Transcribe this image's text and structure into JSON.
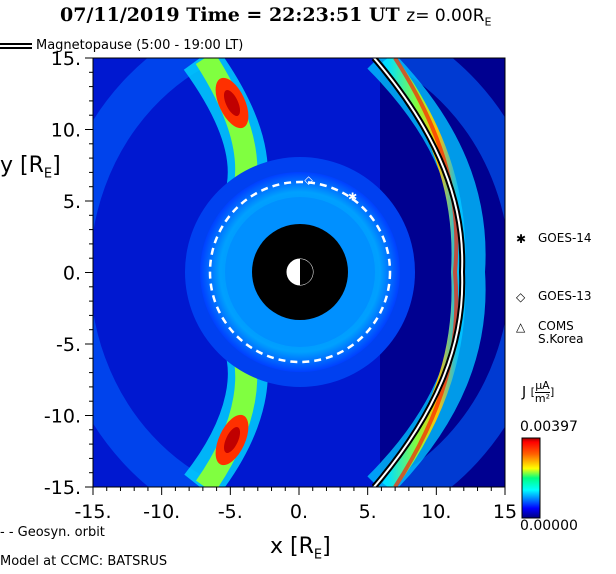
{
  "header": {
    "date": "07/11/2019",
    "time_label": "Time = 22:23:51 UT",
    "z_label": "z= 0.00R",
    "z_sub": "E"
  },
  "legend": {
    "magnetopause": "Magnetopause (5:00 - 19:00 LT)",
    "geosyn": "- - Geosyn. orbit",
    "model": "Model at CCMC: BATSRUS"
  },
  "satellites": [
    {
      "name": "GOES-14",
      "marker": "✱",
      "x": 3.9,
      "y": 5.3
    },
    {
      "name": "GOES-13",
      "marker": "◇",
      "x": 0.7,
      "y": 6.5
    },
    {
      "name": "COMS",
      "name2": "S.Korea",
      "marker": "△"
    }
  ],
  "colorbar": {
    "label": "J",
    "unit_num": "μA",
    "unit_den": "m²",
    "max": "0.00397",
    "min": "0.00000",
    "colors": [
      "#000080",
      "#0000ff",
      "#0080ff",
      "#00ffff",
      "#00ff80",
      "#80ff00",
      "#ffff00",
      "#ff8000",
      "#ff0000",
      "#800000"
    ]
  },
  "chart_data": {
    "type": "heatmap",
    "xlabel": "x [R",
    "xlabel_sub": "E",
    "ylabel": "y [R",
    "ylabel_sub": "E",
    "xlim": [
      -15,
      15
    ],
    "ylim": [
      -15,
      15
    ],
    "x_ticks": [
      "-15.",
      "-10.",
      "-5.",
      "0.",
      "5.",
      "10.",
      "15"
    ],
    "x_tick_values": [
      -15,
      -10,
      -5,
      0,
      5,
      10,
      15
    ],
    "y_ticks": [
      "15.",
      "10.",
      "5.",
      "0.",
      "-5.",
      "-10.",
      "-15."
    ],
    "y_tick_values": [
      15,
      10,
      5,
      0,
      -5,
      -10,
      -15
    ],
    "earth_black_disk_radius": 3.4,
    "geosyn_orbit_radius": 6.6,
    "magnetopause": {
      "subsolar_x": 11.5,
      "flank_y": 15,
      "flank_x": 5.2
    }
  }
}
